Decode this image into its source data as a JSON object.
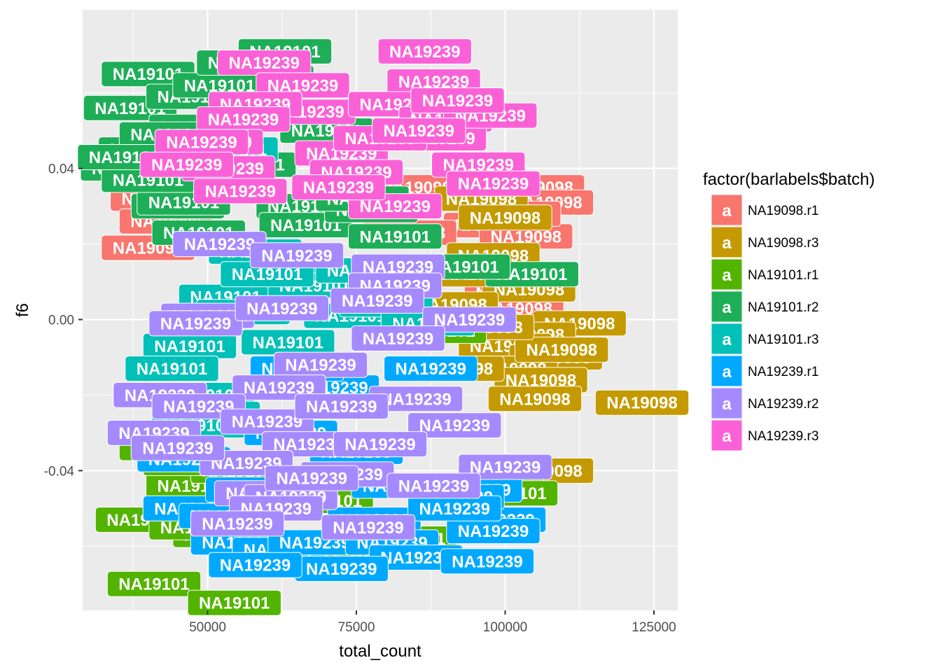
{
  "chart_data": {
    "type": "scatter",
    "geom": "label",
    "title": "",
    "xlabel": "total_count",
    "ylabel": "f6",
    "xlim": [
      29000,
      129000
    ],
    "ylim": [
      -0.077,
      0.082
    ],
    "x_ticks": [
      50000,
      75000,
      100000,
      125000
    ],
    "x_tick_labels": [
      "50000",
      "75000",
      "100000",
      "125000"
    ],
    "y_ticks": [
      -0.04,
      0.0,
      0.04
    ],
    "y_tick_labels": [
      "-0.04",
      "0.00",
      "0.04"
    ],
    "grid": true,
    "legend": {
      "title": "factor(barlabels$batch)",
      "position": "right",
      "key_glyph": "a"
    },
    "series": [
      {
        "name": "NA19098.r1",
        "color": "#F8766D",
        "label": "NA19098",
        "points": [
          [
            40000,
            0.019
          ],
          [
            41500,
            0.032
          ],
          [
            45000,
            0.03
          ],
          [
            98000,
            0.035
          ],
          [
            97500,
            0.025
          ],
          [
            105500,
            0.035
          ],
          [
            103500,
            0.022
          ],
          [
            104000,
            0.012
          ],
          [
            101000,
            0.007
          ],
          [
            107000,
            0.031
          ],
          [
            43000,
            0.026
          ],
          [
            84000,
            0.023
          ],
          [
            101500,
            0.028
          ],
          [
            85000,
            0.035
          ],
          [
            102000,
            0.003
          ]
        ]
      },
      {
        "name": "NA19098.r3",
        "color": "#C49A00",
        "label": "NA19098",
        "points": [
          [
            96000,
            0.032
          ],
          [
            100000,
            0.027
          ],
          [
            98000,
            0.017
          ],
          [
            104000,
            0.008
          ],
          [
            112500,
            -0.001
          ],
          [
            104000,
            -0.004
          ],
          [
            100000,
            -0.007
          ],
          [
            108500,
            -0.01
          ],
          [
            101000,
            -0.013
          ],
          [
            106000,
            -0.016
          ],
          [
            92000,
            -0.013
          ],
          [
            105000,
            -0.021
          ],
          [
            123000,
            -0.022
          ],
          [
            95500,
            0.012
          ],
          [
            107000,
            -0.04
          ],
          [
            91000,
            0.004
          ],
          [
            109500,
            -0.008
          ],
          [
            97000,
            -0.002
          ]
        ]
      },
      {
        "name": "NA19101.r1",
        "color": "#53B400",
        "label": "NA19101",
        "points": [
          [
            39000,
            -0.053
          ],
          [
            41000,
            -0.07
          ],
          [
            54500,
            -0.075
          ],
          [
            47500,
            -0.044
          ],
          [
            52000,
            -0.057
          ],
          [
            43000,
            -0.034
          ],
          [
            48000,
            -0.055
          ],
          [
            67500,
            -0.065
          ],
          [
            72500,
            -0.063
          ],
          [
            98500,
            -0.045
          ],
          [
            101000,
            -0.046
          ],
          [
            60000,
            -0.06
          ],
          [
            80000,
            -0.062
          ],
          [
            84000,
            -0.058
          ],
          [
            89000,
            -0.003
          ],
          [
            55000,
            -0.04
          ],
          [
            70000,
            -0.048
          ],
          [
            47000,
            -0.038
          ]
        ]
      },
      {
        "name": "NA19101.r2",
        "color": "#00B6EB",
        "label": "NA19101",
        "points": [
          [
            40000,
            0.065
          ],
          [
            37000,
            0.056
          ],
          [
            39500,
            0.045
          ],
          [
            36500,
            0.04
          ],
          [
            45000,
            0.03
          ],
          [
            46000,
            0.031
          ],
          [
            48500,
            0.023
          ],
          [
            47500,
            0.059
          ],
          [
            48000,
            0.051
          ],
          [
            63000,
            0.071
          ],
          [
            66000,
            0.03
          ],
          [
            66500,
            0.025
          ],
          [
            77500,
            0.029
          ],
          [
            81500,
            0.022
          ],
          [
            104500,
            0.012
          ],
          [
            60000,
            0.064
          ],
          [
            57000,
            0.041
          ],
          [
            43000,
            0.049
          ],
          [
            40000,
            0.037
          ],
          [
            52000,
            0.062
          ],
          [
            36000,
            0.043
          ],
          [
            56000,
            0.068
          ],
          [
            93000,
            0.014
          ],
          [
            76000,
            0.032
          ],
          [
            70000,
            0.05
          ]
        ],
        "color_fill": "#1EAE57"
      },
      {
        "name": "NA19101.r3",
        "color": "#00C0B8",
        "label": "NA19101",
        "points": [
          [
            58000,
            0.018
          ],
          [
            61000,
            0.011
          ],
          [
            53000,
            0.006
          ],
          [
            47000,
            -0.007
          ],
          [
            44000,
            -0.013
          ],
          [
            50000,
            -0.02
          ],
          [
            56000,
            0.002
          ],
          [
            68000,
            0.009
          ],
          [
            74000,
            0.001
          ],
          [
            63500,
            -0.006
          ],
          [
            51000,
            -0.025
          ],
          [
            80000,
            0.004
          ],
          [
            60000,
            0.012
          ],
          [
            87000,
            -0.001
          ],
          [
            54000,
            0.045
          ],
          [
            69000,
            -0.012
          ],
          [
            48500,
            -0.028
          ],
          [
            76000,
            0.013
          ]
        ]
      },
      {
        "name": "NA19239.r1",
        "color": "#00A9FF",
        "label": "NA19239",
        "points": [
          [
            46000,
            -0.037
          ],
          [
            47000,
            -0.05
          ],
          [
            53000,
            -0.052
          ],
          [
            55000,
            -0.059
          ],
          [
            62000,
            -0.061
          ],
          [
            68000,
            -0.059
          ],
          [
            78000,
            -0.053
          ],
          [
            81000,
            -0.059
          ],
          [
            85000,
            -0.063
          ],
          [
            95000,
            -0.045
          ],
          [
            99000,
            -0.053
          ],
          [
            97000,
            -0.064
          ],
          [
            72500,
            -0.066
          ],
          [
            87500,
            -0.013
          ],
          [
            58000,
            -0.065
          ],
          [
            92000,
            -0.047
          ],
          [
            64000,
            -0.03
          ],
          [
            75000,
            -0.035
          ],
          [
            71000,
            -0.018
          ],
          [
            98000,
            -0.056
          ],
          [
            65000,
            -0.013
          ],
          [
            82000,
            -0.044
          ],
          [
            57500,
            -0.045
          ],
          [
            91500,
            -0.05
          ]
        ]
      },
      {
        "name": "NA19239.r2",
        "color": "#A58AFF",
        "label": "NA19239",
        "points": [
          [
            52000,
            0.02
          ],
          [
            65000,
            0.017
          ],
          [
            82000,
            0.014
          ],
          [
            81500,
            0.009
          ],
          [
            50000,
            0.001
          ],
          [
            48000,
            -0.001
          ],
          [
            62500,
            0.003
          ],
          [
            78500,
            0.005
          ],
          [
            94000,
            0.0
          ],
          [
            82000,
            -0.005
          ],
          [
            69000,
            -0.012
          ],
          [
            42000,
            -0.02
          ],
          [
            62000,
            -0.018
          ],
          [
            85000,
            -0.021
          ],
          [
            41000,
            -0.03
          ],
          [
            48500,
            -0.023
          ],
          [
            60000,
            -0.027
          ],
          [
            72500,
            -0.023
          ],
          [
            91500,
            -0.028
          ],
          [
            67000,
            -0.033
          ],
          [
            79000,
            -0.033
          ],
          [
            56500,
            -0.038
          ],
          [
            59000,
            -0.046
          ],
          [
            100000,
            -0.039
          ],
          [
            64000,
            -0.047
          ],
          [
            73500,
            -0.041
          ],
          [
            88000,
            -0.044
          ],
          [
            67500,
            -0.042
          ],
          [
            61500,
            -0.05
          ],
          [
            55000,
            -0.054
          ],
          [
            77000,
            -0.055
          ],
          [
            45000,
            -0.034
          ]
        ]
      },
      {
        "name": "NA19239.r3",
        "color": "#FB61D7",
        "label": "NA19239",
        "points": [
          [
            59500,
            0.068
          ],
          [
            66000,
            0.062
          ],
          [
            86500,
            0.071
          ],
          [
            88000,
            0.063
          ],
          [
            67000,
            0.055
          ],
          [
            58000,
            0.057
          ],
          [
            81500,
            0.057
          ],
          [
            56000,
            0.053
          ],
          [
            90000,
            0.053
          ],
          [
            89000,
            0.048
          ],
          [
            51500,
            0.047
          ],
          [
            53500,
            0.04
          ],
          [
            72500,
            0.044
          ],
          [
            95500,
            0.041
          ],
          [
            75000,
            0.039
          ],
          [
            81500,
            0.03
          ],
          [
            49000,
            0.047
          ],
          [
            79000,
            0.048
          ],
          [
            46500,
            0.041
          ],
          [
            97500,
            0.054
          ],
          [
            92000,
            0.058
          ],
          [
            55500,
            0.034
          ],
          [
            72000,
            0.035
          ],
          [
            85500,
            0.05
          ],
          [
            98000,
            0.036
          ]
        ]
      }
    ]
  }
}
